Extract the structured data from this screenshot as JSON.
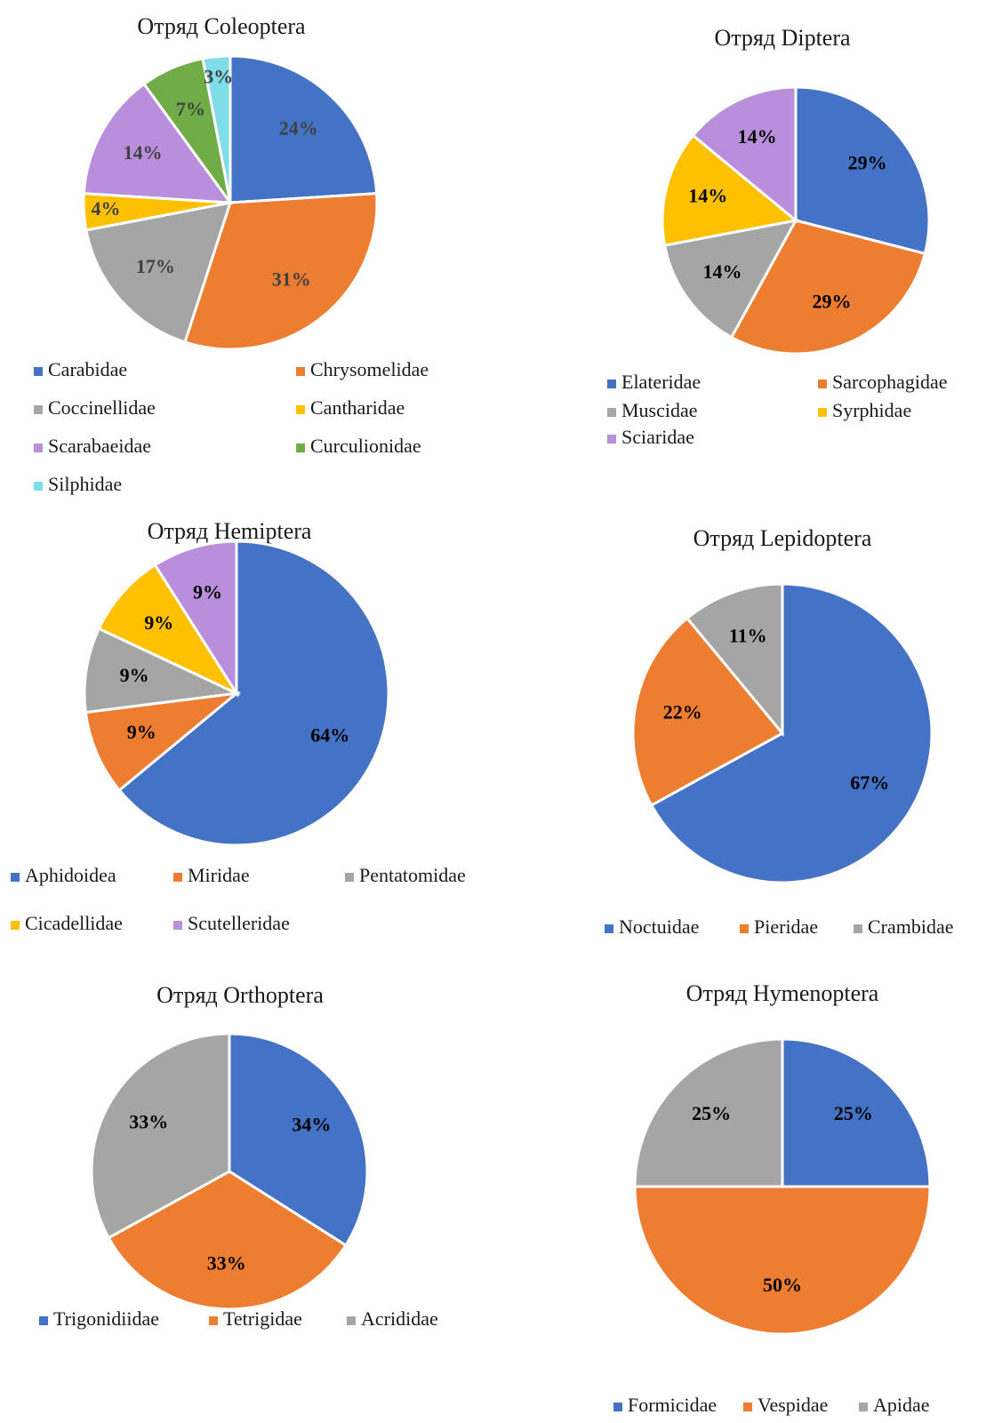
{
  "chart_data": [
    {
      "type": "pie",
      "title": "Отряд Coleoptera",
      "categories": [
        "Carabidae",
        "Chrysomelidae",
        "Coccinellidae",
        "Cantharidae",
        "Scarabaeidae",
        "Curculionidae",
        "Silphidae"
      ],
      "values": [
        24,
        31,
        17,
        4,
        14,
        7,
        3
      ],
      "value_labels": [
        "24%",
        "31%",
        "17%",
        "4%",
        "14%",
        "7%",
        "3%"
      ],
      "colors": [
        "#4472c4",
        "#ed7d31",
        "#a5a5a5",
        "#ffc000",
        "#b98fdc",
        "#70ad47",
        "#7fdde8"
      ]
    },
    {
      "type": "pie",
      "title": "Отряд Diptera",
      "categories": [
        "Elateridae",
        "Sarcophagidae",
        "Muscidae",
        "Syrphidae",
        "Sciaridae"
      ],
      "values": [
        29,
        29,
        14,
        14,
        14
      ],
      "value_labels": [
        "29%",
        "29%",
        "14%",
        "14%",
        "14%"
      ],
      "colors": [
        "#4472c4",
        "#ed7d31",
        "#a5a5a5",
        "#ffc000",
        "#b98fdc"
      ]
    },
    {
      "type": "pie",
      "title": "Отряд Hemiptera",
      "categories": [
        "Aphidoidea",
        "Miridae",
        "Pentatomidae",
        "Cicadellidae",
        "Scutelleridae"
      ],
      "values": [
        64,
        9,
        9,
        9,
        9
      ],
      "value_labels": [
        "64%",
        "9%",
        "9%",
        "9%",
        "9%"
      ],
      "colors": [
        "#4472c4",
        "#ed7d31",
        "#a5a5a5",
        "#ffc000",
        "#b98fdc"
      ]
    },
    {
      "type": "pie",
      "title": "Отряд Lepidoptera",
      "categories": [
        "Noctuidae",
        "Pieridae",
        "Crambidae"
      ],
      "values": [
        67,
        22,
        11
      ],
      "value_labels": [
        "67%",
        "22%",
        "11%"
      ],
      "colors": [
        "#4472c4",
        "#ed7d31",
        "#a5a5a5"
      ]
    },
    {
      "type": "pie",
      "title": "Отряд Orthoptera",
      "categories": [
        "Trigonidiidae",
        "Tetrigidae",
        "Acrididae"
      ],
      "values": [
        34,
        33,
        33
      ],
      "value_labels": [
        "34%",
        "33%",
        "33%"
      ],
      "colors": [
        "#4472c4",
        "#ed7d31",
        "#a5a5a5"
      ]
    },
    {
      "type": "pie",
      "title": "Отряд Hymenoptera",
      "categories": [
        "Formicidae",
        "Vespidae",
        "Apidae"
      ],
      "values": [
        25,
        50,
        25
      ],
      "value_labels": [
        "25%",
        "50%",
        "25%"
      ],
      "colors": [
        "#4472c4",
        "#ed7d31",
        "#a5a5a5"
      ]
    }
  ]
}
